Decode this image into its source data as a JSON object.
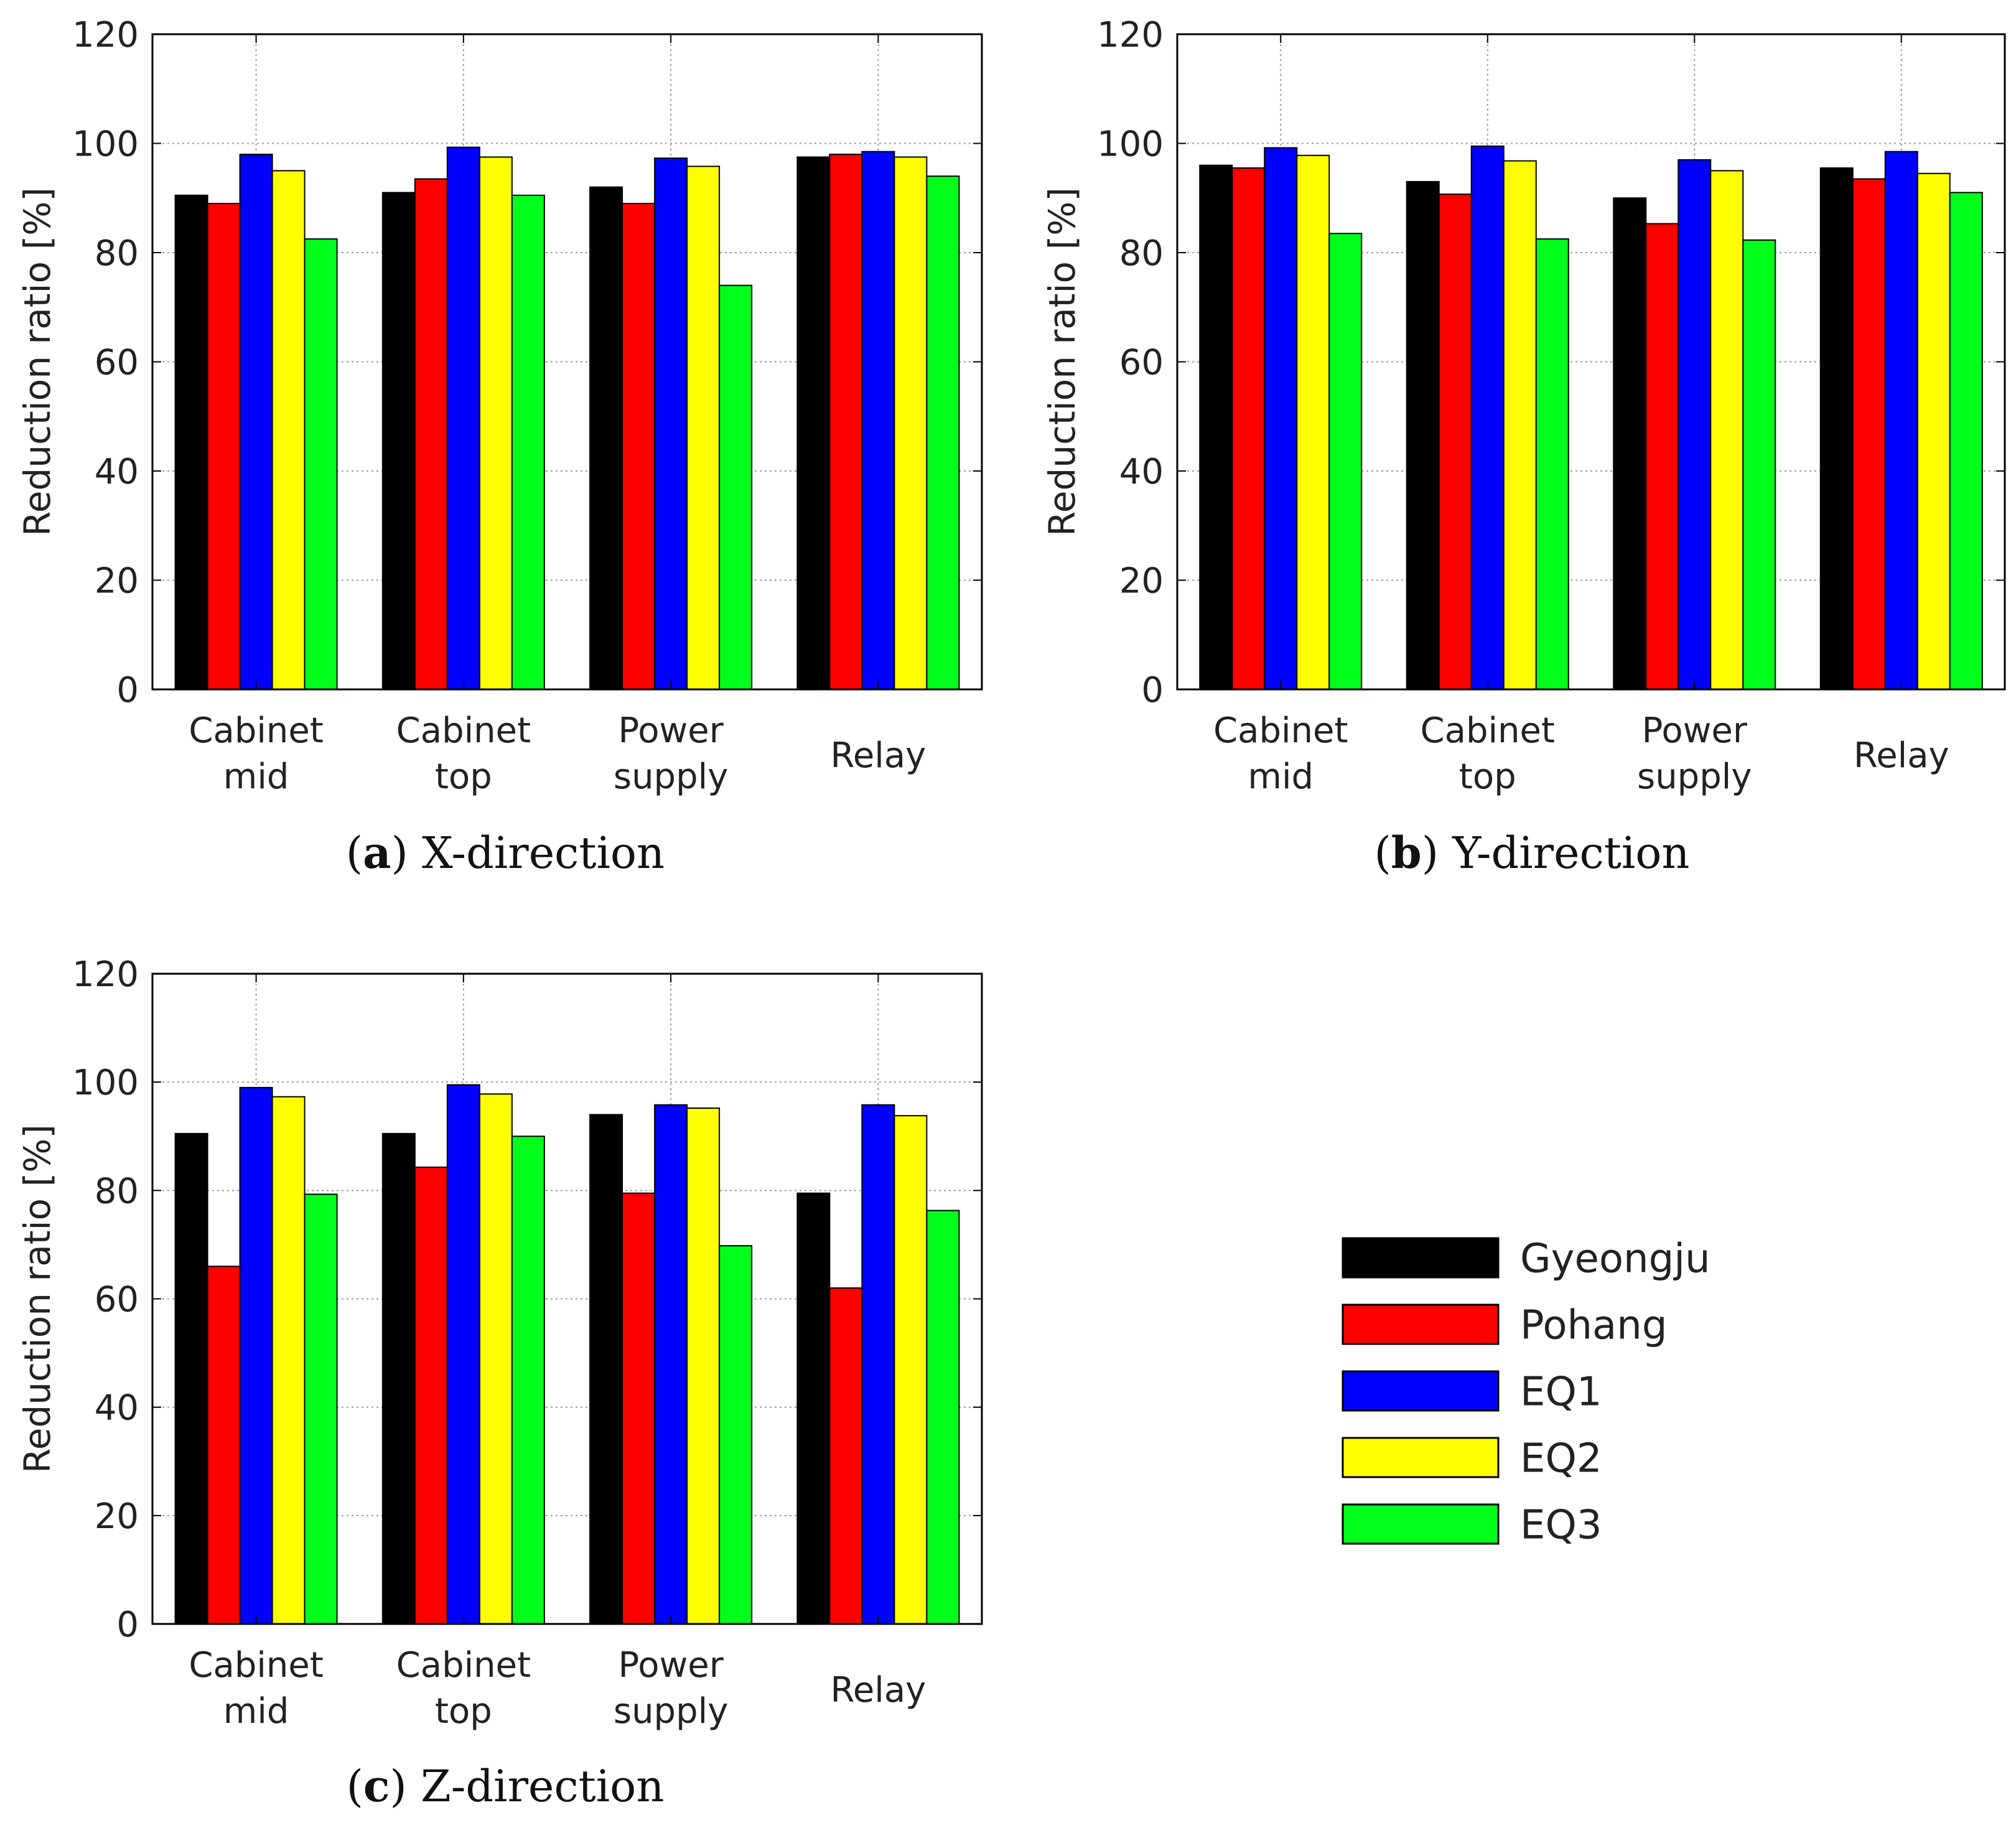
{
  "chart_data": [
    {
      "type": "bar",
      "panel_letter": "a",
      "caption": "X-direction",
      "ylabel": "Reduction ratio [%]",
      "ylim": [
        0,
        120
      ],
      "yticks": [
        "0",
        "20",
        "40",
        "60",
        "80",
        "100",
        "120"
      ],
      "grid": true,
      "categories": [
        [
          "Cabinet",
          "mid"
        ],
        [
          "Cabinet",
          "top"
        ],
        [
          "Power",
          "supply"
        ],
        [
          "Relay"
        ]
      ],
      "series": [
        {
          "name": "Gyeongju",
          "values": [
            90.5,
            91,
            92,
            97.5
          ]
        },
        {
          "name": "Pohang",
          "values": [
            89,
            93.5,
            89,
            98
          ]
        },
        {
          "name": "EQ1",
          "values": [
            98,
            99.3,
            97.3,
            98.5
          ]
        },
        {
          "name": "EQ2",
          "values": [
            95,
            97.5,
            95.8,
            97.5
          ]
        },
        {
          "name": "EQ3",
          "values": [
            82.5,
            90.5,
            74,
            94
          ]
        }
      ]
    },
    {
      "type": "bar",
      "panel_letter": "b",
      "caption": "Y-direction",
      "ylabel": "Reduction ratio [%]",
      "ylim": [
        0,
        120
      ],
      "yticks": [
        "0",
        "20",
        "40",
        "60",
        "80",
        "100",
        "120"
      ],
      "grid": true,
      "categories": [
        [
          "Cabinet",
          "mid"
        ],
        [
          "Cabinet",
          "top"
        ],
        [
          "Power",
          "supply"
        ],
        [
          "Relay"
        ]
      ],
      "series": [
        {
          "name": "Gyeongju",
          "values": [
            96,
            93,
            90,
            95.5
          ]
        },
        {
          "name": "Pohang",
          "values": [
            95.5,
            90.7,
            85.3,
            93.5
          ]
        },
        {
          "name": "EQ1",
          "values": [
            99.2,
            99.5,
            97,
            98.5
          ]
        },
        {
          "name": "EQ2",
          "values": [
            97.8,
            96.8,
            95,
            94.5
          ]
        },
        {
          "name": "EQ3",
          "values": [
            83.5,
            82.5,
            82.3,
            91
          ]
        }
      ]
    },
    {
      "type": "bar",
      "panel_letter": "c",
      "caption": "Z-direction",
      "ylabel": "Reduction ratio [%]",
      "ylim": [
        0,
        120
      ],
      "yticks": [
        "0",
        "20",
        "40",
        "60",
        "80",
        "100",
        "120"
      ],
      "grid": true,
      "categories": [
        [
          "Cabinet",
          "mid"
        ],
        [
          "Cabinet",
          "top"
        ],
        [
          "Power",
          "supply"
        ],
        [
          "Relay"
        ]
      ],
      "series": [
        {
          "name": "Gyeongju",
          "values": [
            90.5,
            90.5,
            94,
            79.5
          ]
        },
        {
          "name": "Pohang",
          "values": [
            66,
            84.3,
            79.5,
            62
          ]
        },
        {
          "name": "EQ1",
          "values": [
            99,
            99.5,
            95.8,
            95.8
          ]
        },
        {
          "name": "EQ2",
          "values": [
            97.3,
            97.8,
            95.2,
            93.8
          ]
        },
        {
          "name": "EQ3",
          "values": [
            79.3,
            90,
            69.8,
            76.3
          ]
        }
      ]
    }
  ],
  "legend": {
    "items": [
      {
        "name": "Gyeongju",
        "color": "#000000"
      },
      {
        "name": "Pohang",
        "color": "#ff0000"
      },
      {
        "name": "EQ1",
        "color": "#0000ff"
      },
      {
        "name": "EQ2",
        "color": "#ffff00"
      },
      {
        "name": "EQ3",
        "color": "#00ff1a"
      }
    ]
  },
  "colors": {
    "Gyeongju": "#000000",
    "Pohang": "#ff0000",
    "EQ1": "#0000ff",
    "EQ2": "#ffff00",
    "EQ3": "#00ff1a"
  }
}
